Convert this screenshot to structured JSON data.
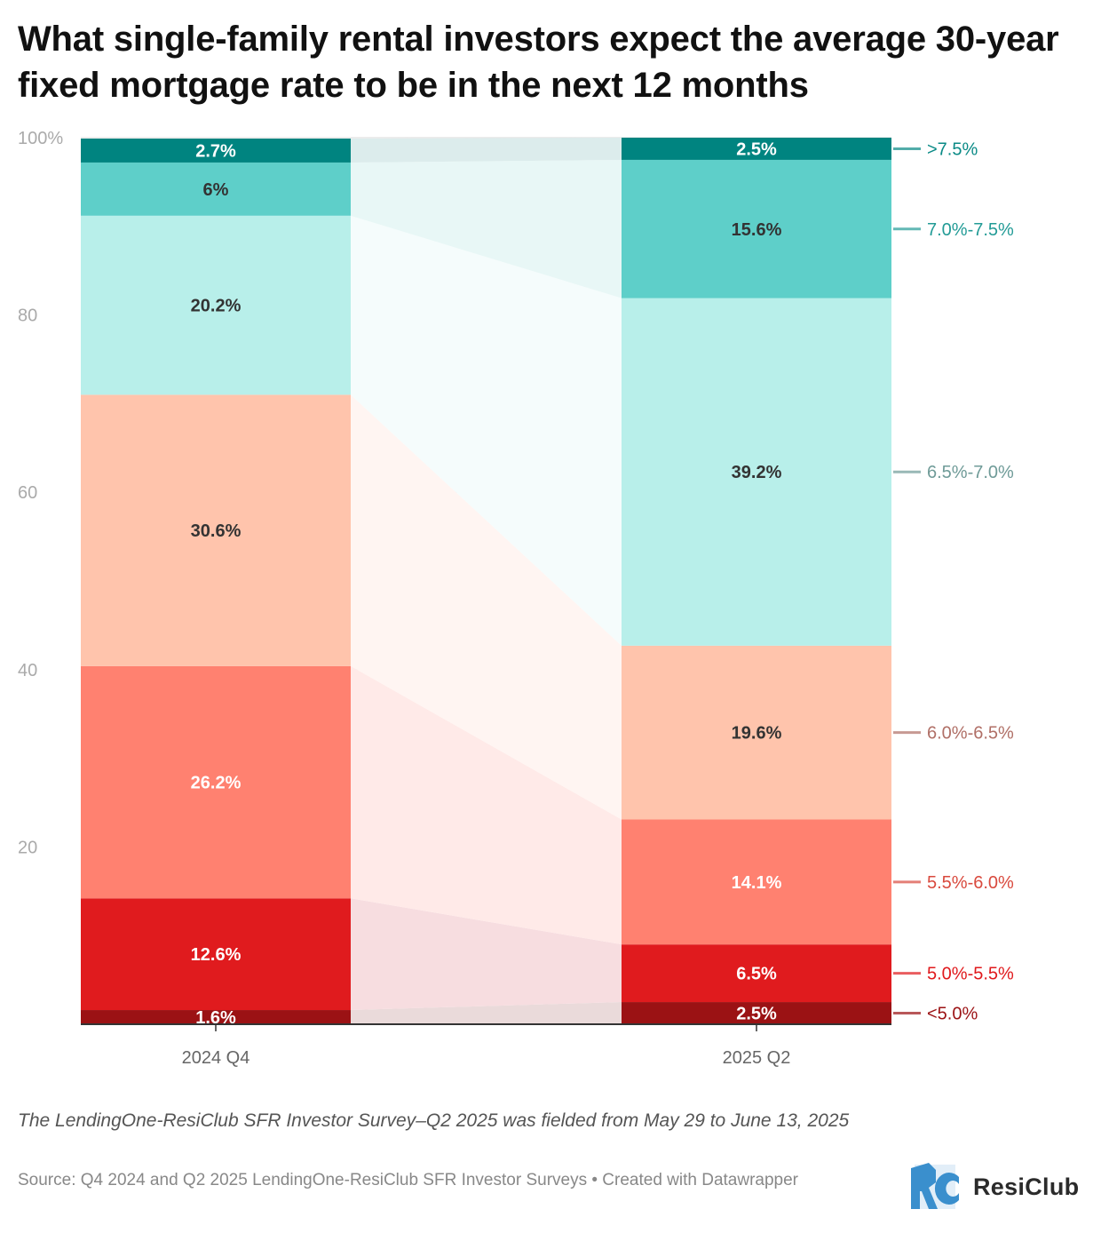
{
  "title": "What single-family rental investors expect the average 30-year fixed mortgage rate to be in the next 12 months",
  "note": "The LendingOne-ResiClub SFR Investor Survey–Q2 2025 was fielded from May 29 to June 13, 2025",
  "source": "Source: Q4 2024 and Q2 2025 LendingOne-ResiClub SFR Investor Surveys • Created with Datawrapper",
  "brand": {
    "name": "ResiClub",
    "logo_text": "RC",
    "logo_icon": "resiclub-logo-icon",
    "logo_color": "#3a8fcd"
  },
  "chart_data": {
    "type": "stacked-bar",
    "categories": [
      "2024 Q4",
      "2025 Q2"
    ],
    "ylim": [
      0,
      100
    ],
    "yticks": [
      0,
      20,
      40,
      60,
      80,
      100
    ],
    "ytick_labels": [
      "",
      "20",
      "40",
      "60",
      "80",
      "100%"
    ],
    "series": [
      {
        "name": "<5.0%",
        "values": [
          1.6,
          2.5
        ],
        "labels": [
          "1.6%",
          "2.5%"
        ],
        "color": "#9b1214",
        "label_color": "#9b1214",
        "text_color": "#ffffff",
        "band_color": "#eadada"
      },
      {
        "name": "5.0%-5.5%",
        "values": [
          12.6,
          6.5
        ],
        "labels": [
          "12.6%",
          "6.5%"
        ],
        "color": "#e01b1e",
        "label_color": "#e0191c",
        "text_color": "#ffffff",
        "band_color": "#f7dde0"
      },
      {
        "name": "5.5%-6.0%",
        "values": [
          26.2,
          14.1
        ],
        "labels": [
          "26.2%",
          "14.1%"
        ],
        "color": "#ff8170",
        "label_color": "#d94a3e",
        "text_color": "#ffffff",
        "band_color": "#ffeae8"
      },
      {
        "name": "6.0%-6.5%",
        "values": [
          30.6,
          19.6
        ],
        "labels": [
          "30.6%",
          "19.6%"
        ],
        "color": "#ffc4ac",
        "label_color": "#b06f66",
        "text_color": "#333333",
        "band_color": "#fff5f2"
      },
      {
        "name": "6.5%-7.0%",
        "values": [
          20.2,
          39.2
        ],
        "labels": [
          "20.2%",
          "39.2%"
        ],
        "color": "#b8efea",
        "label_color": "#6f9b98",
        "text_color": "#333333",
        "band_color": "#f5fcfc"
      },
      {
        "name": "7.0%-7.5%",
        "values": [
          6,
          15.6
        ],
        "labels": [
          "6%",
          "15.6%"
        ],
        "color": "#5ecfc9",
        "label_color": "#229b96",
        "text_color": "#333333",
        "band_color": "#e8f7f6"
      },
      {
        "name": ">7.5%",
        "values": [
          2.7,
          2.5
        ],
        "labels": [
          "2.7%",
          "2.5%"
        ],
        "color": "#008480",
        "label_color": "#0a8a86",
        "text_color": "#ffffff",
        "band_color": "#dcecec"
      }
    ]
  }
}
